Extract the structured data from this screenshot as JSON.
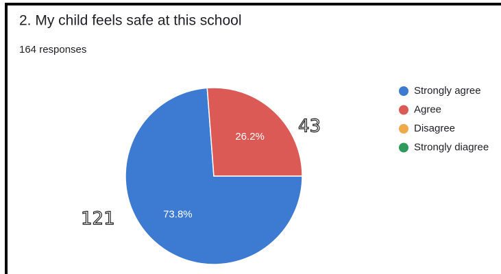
{
  "chart_data": {
    "type": "pie",
    "title": "2. My child feels safe at this school",
    "subtitle": "164 responses",
    "categories": [
      "Strongly agree",
      "Agree",
      "Disagree",
      "Strongly diagree"
    ],
    "values": [
      73.8,
      26.2,
      0,
      0
    ],
    "value_labels": [
      "73.8%",
      "26.2%",
      null,
      null
    ],
    "colors": [
      "#3d7bd2",
      "#dc5a55",
      "#f0a94a",
      "#2f9a5b"
    ],
    "annotations": [
      "121",
      "43"
    ],
    "legend": "right"
  }
}
